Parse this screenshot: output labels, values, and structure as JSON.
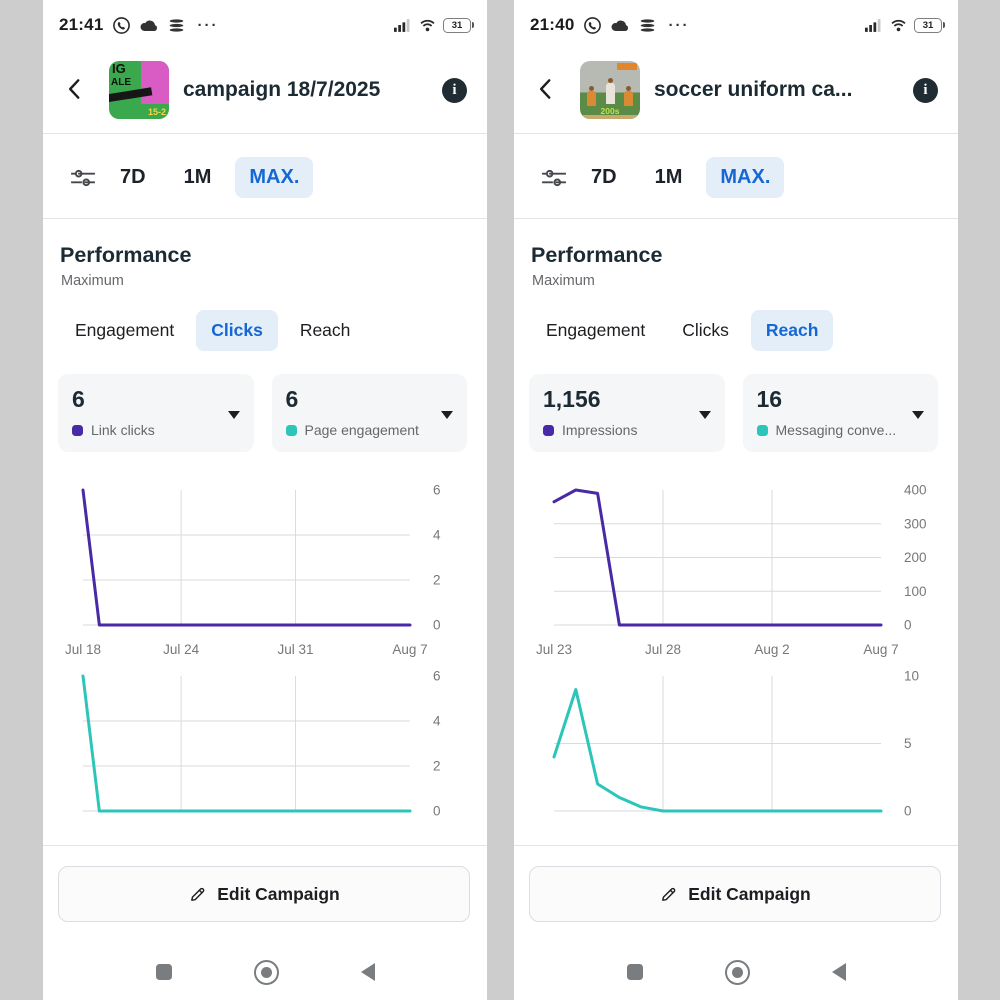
{
  "colors": {
    "accent_blue": "#1567d3",
    "chip_blue_bg": "#e4eef9",
    "purple_series": "#4829a6",
    "teal_series": "#2cc5b9",
    "card_bg": "#f5f6f7"
  },
  "screens": [
    {
      "status_bar": {
        "time": "21:41",
        "battery": "31"
      },
      "header": {
        "title": "campaign 18/7/2025",
        "thumb_texts": [
          "IG",
          "ALE",
          "15-2"
        ]
      },
      "filters": {
        "options": [
          {
            "label": "7D",
            "active": false
          },
          {
            "label": "1M",
            "active": false
          },
          {
            "label": "MAX.",
            "active": true
          }
        ]
      },
      "performance": {
        "title": "Performance",
        "subtitle": "Maximum"
      },
      "tabs": [
        {
          "label": "Engagement",
          "active": false
        },
        {
          "label": "Clicks",
          "active": true
        },
        {
          "label": "Reach",
          "active": false
        }
      ],
      "metrics": [
        {
          "value": "6",
          "label": "Link clicks",
          "dot_color": "#4829a6"
        },
        {
          "value": "6",
          "label": "Page engagement",
          "dot_color": "#2cc5b9"
        }
      ],
      "edit_button_label": "Edit Campaign"
    },
    {
      "status_bar": {
        "time": "21:40",
        "battery": "31"
      },
      "header": {
        "title": "soccer uniform ca...",
        "thumb_texts": [
          "200s"
        ]
      },
      "filters": {
        "options": [
          {
            "label": "7D",
            "active": false
          },
          {
            "label": "1M",
            "active": false
          },
          {
            "label": "MAX.",
            "active": true
          }
        ]
      },
      "performance": {
        "title": "Performance",
        "subtitle": "Maximum"
      },
      "tabs": [
        {
          "label": "Engagement",
          "active": false
        },
        {
          "label": "Clicks",
          "active": false
        },
        {
          "label": "Reach",
          "active": true
        }
      ],
      "metrics": [
        {
          "value": "1,156",
          "label": "Impressions",
          "dot_color": "#4829a6"
        },
        {
          "value": "16",
          "label": "Messaging conve...",
          "dot_color": "#2cc5b9"
        }
      ],
      "edit_button_label": "Edit Campaign"
    }
  ],
  "chart_data": [
    {
      "type": "line",
      "series": "Link clicks",
      "color": "#4829a6",
      "x_range": [
        0,
        20
      ],
      "x_grid_days": [
        6,
        13
      ],
      "x_ticks": [
        {
          "label": "Jul 18",
          "day": 0
        },
        {
          "label": "Jul 24",
          "day": 6
        },
        {
          "label": "Jul 31",
          "day": 13
        },
        {
          "label": "Aug 7",
          "day": 20
        }
      ],
      "y_ticks": [
        6,
        4,
        2,
        0
      ],
      "ylim": [
        0,
        6
      ],
      "points": [
        [
          0,
          6
        ],
        [
          1,
          0
        ],
        [
          20,
          0
        ]
      ]
    },
    {
      "type": "line",
      "series": "Page engagement",
      "color": "#2cc5b9",
      "x_range": [
        0,
        20
      ],
      "x_grid_days": [
        6,
        13
      ],
      "y_ticks": [
        6,
        4,
        2,
        0
      ],
      "ylim": [
        0,
        6
      ],
      "points": [
        [
          0,
          6
        ],
        [
          1,
          0
        ],
        [
          20,
          0
        ]
      ]
    },
    {
      "type": "line",
      "series": "Impressions",
      "color": "#4829a6",
      "x_range": [
        0,
        15
      ],
      "x_grid_days": [
        5,
        10
      ],
      "x_ticks": [
        {
          "label": "Jul 23",
          "day": 0
        },
        {
          "label": "Jul 28",
          "day": 5
        },
        {
          "label": "Aug 2",
          "day": 10
        },
        {
          "label": "Aug 7",
          "day": 15
        }
      ],
      "y_ticks": [
        400,
        300,
        200,
        100,
        0
      ],
      "ylim": [
        0,
        400
      ],
      "points": [
        [
          0,
          365
        ],
        [
          1,
          400
        ],
        [
          2,
          390
        ],
        [
          3,
          0
        ],
        [
          15,
          0
        ]
      ]
    },
    {
      "type": "line",
      "series": "Messaging conversations",
      "color": "#2cc5b9",
      "x_range": [
        0,
        15
      ],
      "x_grid_days": [
        5,
        10
      ],
      "y_ticks": [
        10,
        5,
        0
      ],
      "ylim": [
        0,
        10
      ],
      "points": [
        [
          0,
          4
        ],
        [
          1,
          9
        ],
        [
          2,
          2
        ],
        [
          3,
          1
        ],
        [
          4,
          0.3
        ],
        [
          5,
          0
        ],
        [
          15,
          0
        ]
      ]
    }
  ]
}
